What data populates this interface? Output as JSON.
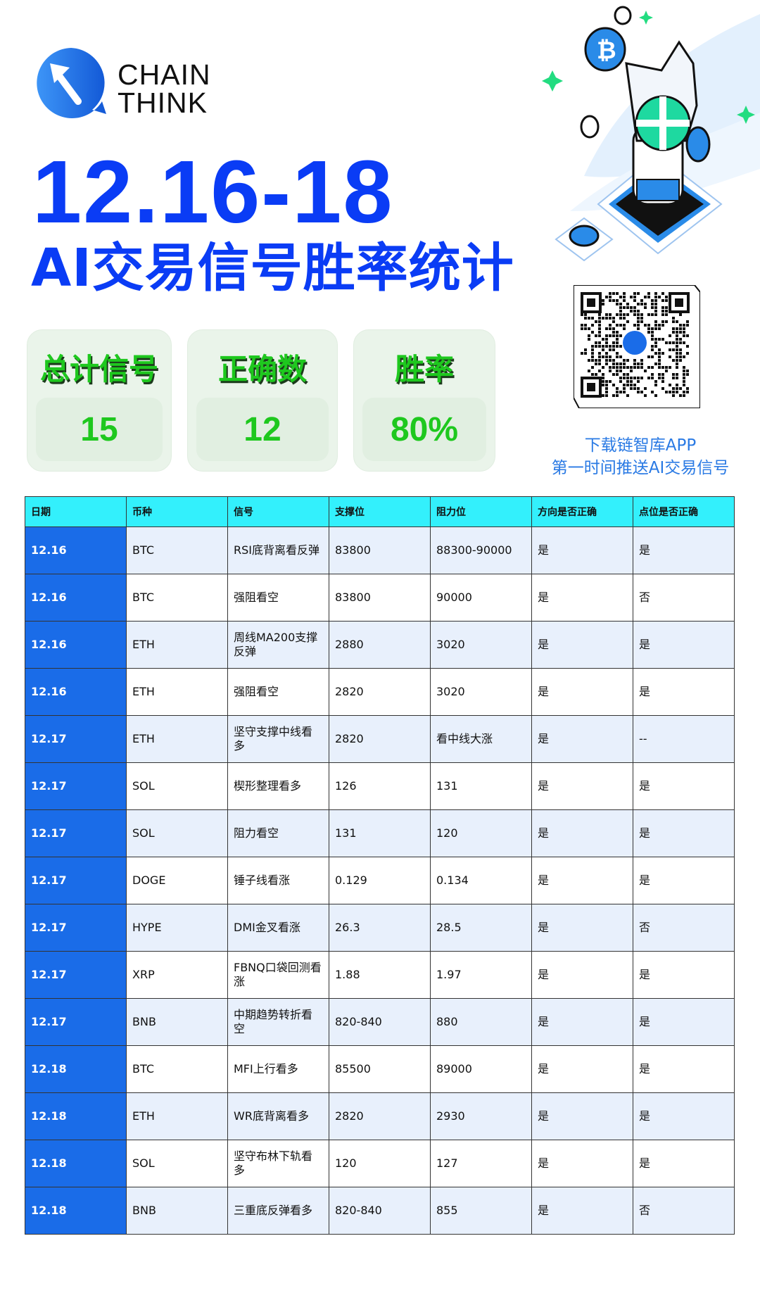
{
  "brand": {
    "line1": "CHAIN",
    "line2": "THINK",
    "color": "#1a6ce8"
  },
  "title": "12.16-18",
  "subtitle": "AI交易信号胜率统计",
  "stats": [
    {
      "label": "总计信号",
      "value": "15"
    },
    {
      "label": "正确数",
      "value": "12"
    },
    {
      "label": "胜率",
      "value": "80%"
    }
  ],
  "promo": {
    "line1": "下载链智库APP",
    "line2": "第一时间推送AI交易信号"
  },
  "colors": {
    "title": "#0a3cf5",
    "stat": "#1ec81e",
    "header": "#33f0fc",
    "date_cell": "#1a6ce8",
    "row_alt": "#e8f0fc"
  },
  "table": {
    "headers": [
      "日期",
      "币种",
      "信号",
      "支撑位",
      "阻力位",
      "方向是否正确",
      "点位是否正确"
    ],
    "rows": [
      [
        "12.16",
        "BTC",
        "RSI底背离看反弹",
        "83800",
        "88300-90000",
        "是",
        "是"
      ],
      [
        "12.16",
        "BTC",
        "强阻看空",
        "83800",
        "90000",
        "是",
        "否"
      ],
      [
        "12.16",
        "ETH",
        "周线MA200支撑反弹",
        "2880",
        "3020",
        "是",
        "是"
      ],
      [
        "12.16",
        "ETH",
        "强阻看空",
        "2820",
        "3020",
        "是",
        "是"
      ],
      [
        "12.17",
        "ETH",
        "坚守支撑中线看多",
        "2820",
        "看中线大涨",
        "是",
        "--"
      ],
      [
        "12.17",
        "SOL",
        "楔形整理看多",
        "126",
        "131",
        "是",
        "是"
      ],
      [
        "12.17",
        "SOL",
        "阻力看空",
        "131",
        "120",
        "是",
        "是"
      ],
      [
        "12.17",
        "DOGE",
        "锤子线看涨",
        "0.129",
        "0.134",
        "是",
        "是"
      ],
      [
        "12.17",
        "HYPE",
        "DMI金叉看涨",
        "26.3",
        "28.5",
        "是",
        "否"
      ],
      [
        "12.17",
        "XRP",
        "FBNQ口袋回测看涨",
        "1.88",
        "1.97",
        "是",
        "是"
      ],
      [
        "12.17",
        "BNB",
        "中期趋势转折看空",
        "820-840",
        "880",
        "是",
        "是"
      ],
      [
        "12.18",
        "BTC",
        "MFI上行看多",
        "85500",
        "89000",
        "是",
        "是"
      ],
      [
        "12.18",
        "ETH",
        "WR底背离看多",
        "2820",
        "2930",
        "是",
        "是"
      ],
      [
        "12.18",
        "SOL",
        "坚守布林下轨看多",
        "120",
        "127",
        "是",
        "是"
      ],
      [
        "12.18",
        "BNB",
        "三重底反弹看多",
        "820-840",
        "855",
        "是",
        "否"
      ]
    ]
  }
}
